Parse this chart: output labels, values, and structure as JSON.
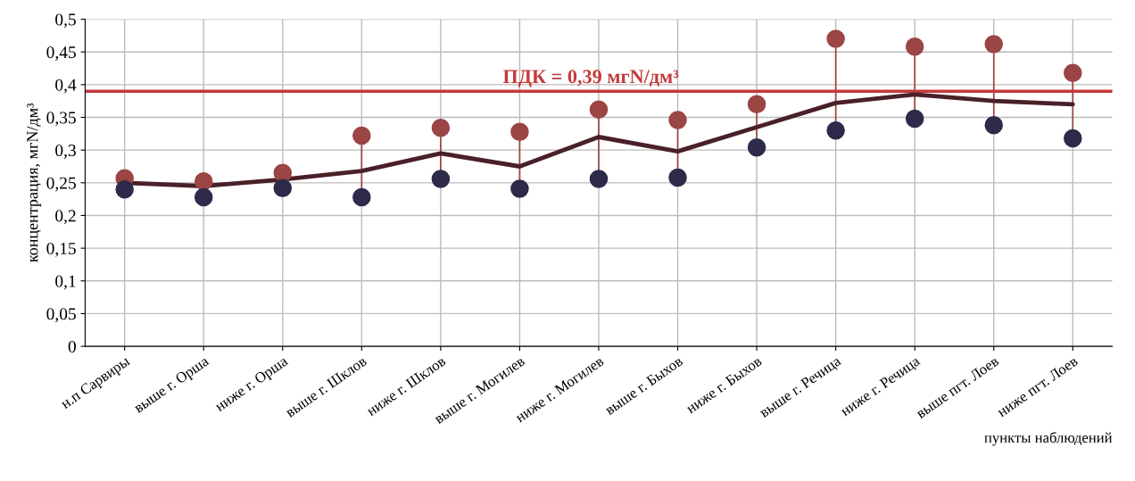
{
  "chart_data": {
    "type": "line",
    "ylabel": "концентрация, мгN/дм³",
    "xlabel": "пункты наблюдений",
    "categories": [
      "н.п Сарвиры",
      "выше г. Орша",
      "ниже г. Орша",
      "выше г. Шклов",
      "ниже г. Шклов",
      "выше г. Могилев",
      "ниже г. Могилев",
      "выше г. Быхов",
      "ниже г. Быхов",
      "выше г. Речица",
      "ниже г. Речица",
      "выше пгт. Лоев",
      "ниже пгт. Лоев"
    ],
    "series": [
      {
        "color": "#4a2028",
        "values": [
          0.25,
          0.245,
          0.255,
          0.268,
          0.295,
          0.275,
          0.32,
          0.298,
          0.335,
          0.372,
          0.385,
          0.375,
          0.37
        ]
      },
      {
        "type": "scatter",
        "marker": "circle",
        "color": "#9b4545",
        "values": [
          0.257,
          0.252,
          0.265,
          0.322,
          0.334,
          0.328,
          0.362,
          0.346,
          0.37,
          0.47,
          0.458,
          0.462,
          0.418
        ]
      },
      {
        "type": "scatter",
        "marker": "circle",
        "color": "#2e2a4a",
        "values": [
          0.24,
          0.228,
          0.242,
          0.228,
          0.256,
          0.241,
          0.256,
          0.258,
          0.304,
          0.33,
          0.348,
          0.338,
          0.318
        ]
      }
    ],
    "ylim": [
      0,
      0.5
    ],
    "yticks": [
      0,
      {
        "value": 0.05,
        "label": "0,05"
      },
      {
        "value": 0.1,
        "label": "0,1"
      },
      {
        "value": 0.15,
        "label": "0,15"
      },
      {
        "value": 0.2,
        "label": "0,2"
      },
      {
        "value": 0.25,
        "label": "0,25"
      },
      {
        "value": 0.3,
        "label": "0,3"
      },
      {
        "value": 0.35,
        "label": "0,35"
      },
      {
        "value": 0.4,
        "label": "0,4"
      },
      {
        "value": 0.45,
        "label": "0,45"
      },
      {
        "value": 0.5,
        "label": "0,5"
      }
    ],
    "ref_lines": [
      {
        "axis": "y",
        "value": 0.39,
        "label": "ПДК = 0,39 мгN/дм³",
        "color": "#c43a3a"
      }
    ],
    "grid": true,
    "legend": false
  }
}
